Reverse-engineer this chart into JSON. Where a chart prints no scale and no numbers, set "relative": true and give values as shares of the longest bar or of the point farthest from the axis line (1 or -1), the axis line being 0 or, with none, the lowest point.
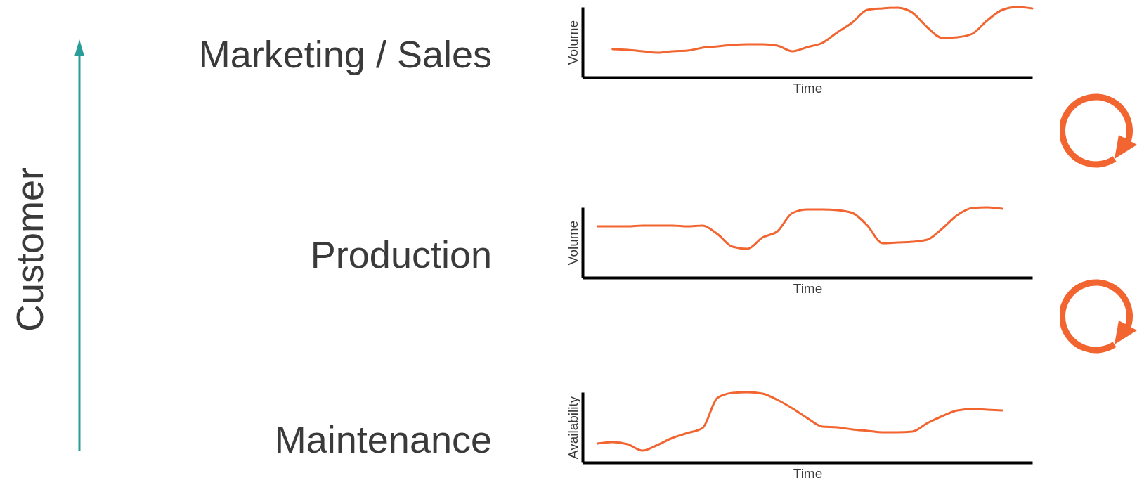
{
  "chart_data": [
    {
      "type": "other",
      "title": "Customer"
    },
    {
      "type": "line",
      "title": "Marketing / Sales",
      "xlabel": "Time",
      "ylabel": "Volume",
      "relative": true,
      "categories": [
        null,
        null,
        null,
        null,
        null,
        null,
        null,
        null,
        null,
        null,
        null,
        null,
        null,
        null,
        null,
        null,
        null,
        null,
        null,
        null,
        null,
        null,
        null,
        null,
        null,
        null,
        null,
        null,
        null,
        null,
        null
      ],
      "series": [
        {
          "color": "#f26530",
          "values": [
            null,
            null,
            0.4,
            0.39,
            0.37,
            0.35,
            0.37,
            0.38,
            0.42,
            0.44,
            0.46,
            0.47,
            0.47,
            0.45,
            0.37,
            0.43,
            0.49,
            0.64,
            0.78,
            0.96,
            0.98,
            0.99,
            0.92,
            0.71,
            0.56,
            0.57,
            0.62,
            0.81,
            0.96,
            1,
            0.98
          ]
        }
      ]
    },
    {
      "type": "line",
      "title": "Production",
      "xlabel": "Time",
      "ylabel": "Volume",
      "relative": true,
      "categories": [
        null,
        null,
        null,
        null,
        null,
        null,
        null,
        null,
        null,
        null,
        null,
        null,
        null,
        null,
        null,
        null,
        null,
        null,
        null,
        null,
        null,
        null,
        null,
        null,
        null,
        null,
        null,
        null,
        null,
        null,
        null
      ],
      "series": [
        {
          "color": "#f26530",
          "values": [
            null,
            0.73,
            0.73,
            0.73,
            0.74,
            0.74,
            0.74,
            0.73,
            0.74,
            0.62,
            0.44,
            0.41,
            0.57,
            0.66,
            0.92,
            0.97,
            0.97,
            0.96,
            0.92,
            0.74,
            0.49,
            0.5,
            0.51,
            0.54,
            0.7,
            0.89,
            0.99,
            1,
            0.98,
            null,
            null
          ]
        }
      ]
    },
    {
      "type": "line",
      "title": "Maintenance",
      "xlabel": "Time",
      "ylabel": "Availability",
      "relative": true,
      "categories": [
        null,
        null,
        null,
        null,
        null,
        null,
        null,
        null,
        null,
        null,
        null,
        null,
        null,
        null,
        null,
        null,
        null,
        null,
        null,
        null,
        null,
        null,
        null,
        null,
        null,
        null,
        null,
        null,
        null,
        null,
        null
      ],
      "series": [
        {
          "color": "#f26530",
          "values": [
            null,
            0.27,
            0.29,
            0.26,
            0.17,
            0.25,
            0.35,
            0.42,
            0.49,
            0.92,
            0.99,
            1,
            0.98,
            0.89,
            0.77,
            0.63,
            0.51,
            0.5,
            0.47,
            0.45,
            0.43,
            0.43,
            0.44,
            0.56,
            0.66,
            0.74,
            0.76,
            0.75,
            0.74,
            null,
            null
          ]
        }
      ]
    }
  ]
}
